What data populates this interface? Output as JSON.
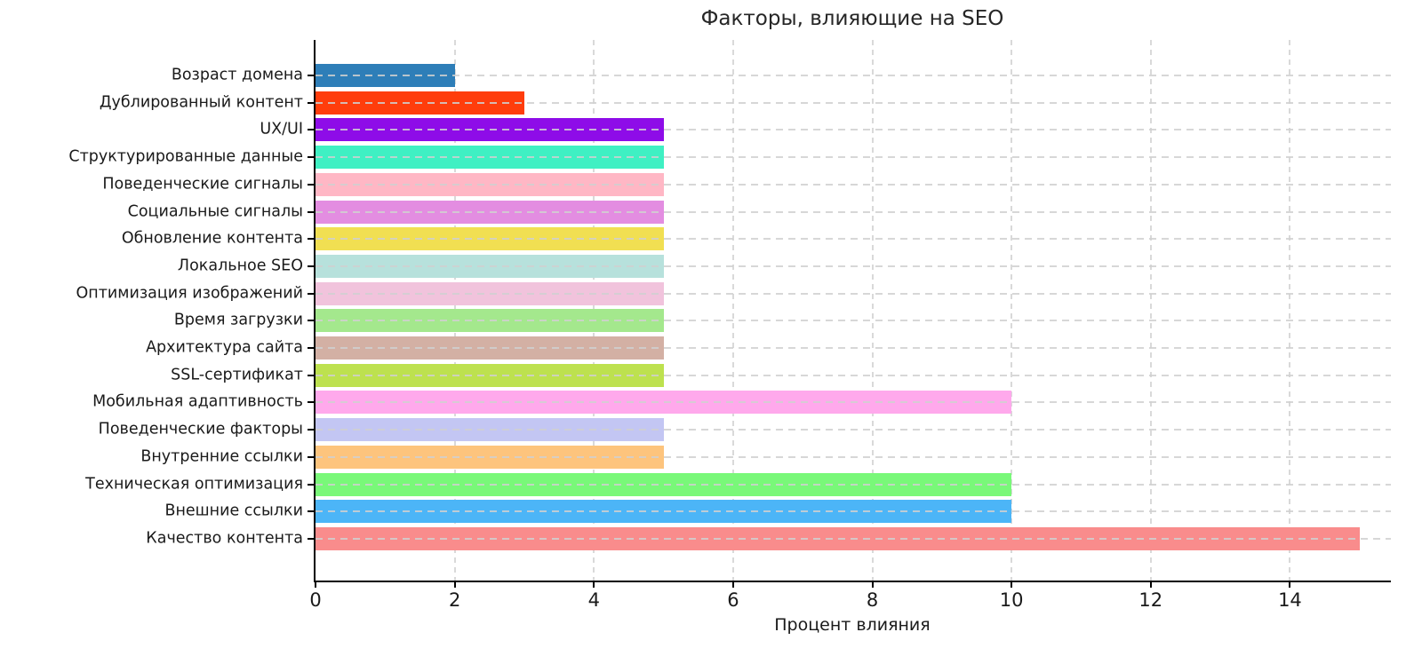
{
  "chart_data": {
    "type": "bar",
    "orientation": "horizontal",
    "title": "Факторы, влияющие на SEO",
    "xlabel": "Процент влияния",
    "ylabel": "",
    "categories": [
      "Возраст домена",
      "Дублированный контент",
      "UX/UI",
      "Структурированные данные",
      "Поведенческие сигналы",
      "Социальные сигналы",
      "Обновление контента",
      "Локальное SEO",
      "Оптимизация изображений",
      "Время загрузки",
      "Архитектура сайта",
      "SSL-сертификат",
      "Мобильная адаптивность",
      "Поведенческие факторы",
      "Внутренние ссылки",
      "Техническая оптимизация",
      "Внешние ссылки",
      "Качество контента"
    ],
    "values": [
      2,
      3,
      5,
      5,
      5,
      5,
      5,
      5,
      5,
      5,
      5,
      5,
      10,
      5,
      5,
      10,
      10,
      15
    ],
    "colors": [
      "#2E7EB8",
      "#FF3D0C",
      "#8E0CE8",
      "#3FF0C3",
      "#FFB7C5",
      "#E38DE1",
      "#F1DF52",
      "#B7E1DC",
      "#F1C3DC",
      "#A4E88D",
      "#D3B0A4",
      "#BDE14F",
      "#FFA9EC",
      "#C3C6F3",
      "#FDC47D",
      "#79F879",
      "#4CB5F7",
      "#F98C8C"
    ],
    "x_ticks": [
      0,
      2,
      4,
      6,
      8,
      10,
      12,
      14
    ],
    "xlim": [
      0,
      15.45
    ],
    "grid": "dashed",
    "legend": "none"
  }
}
